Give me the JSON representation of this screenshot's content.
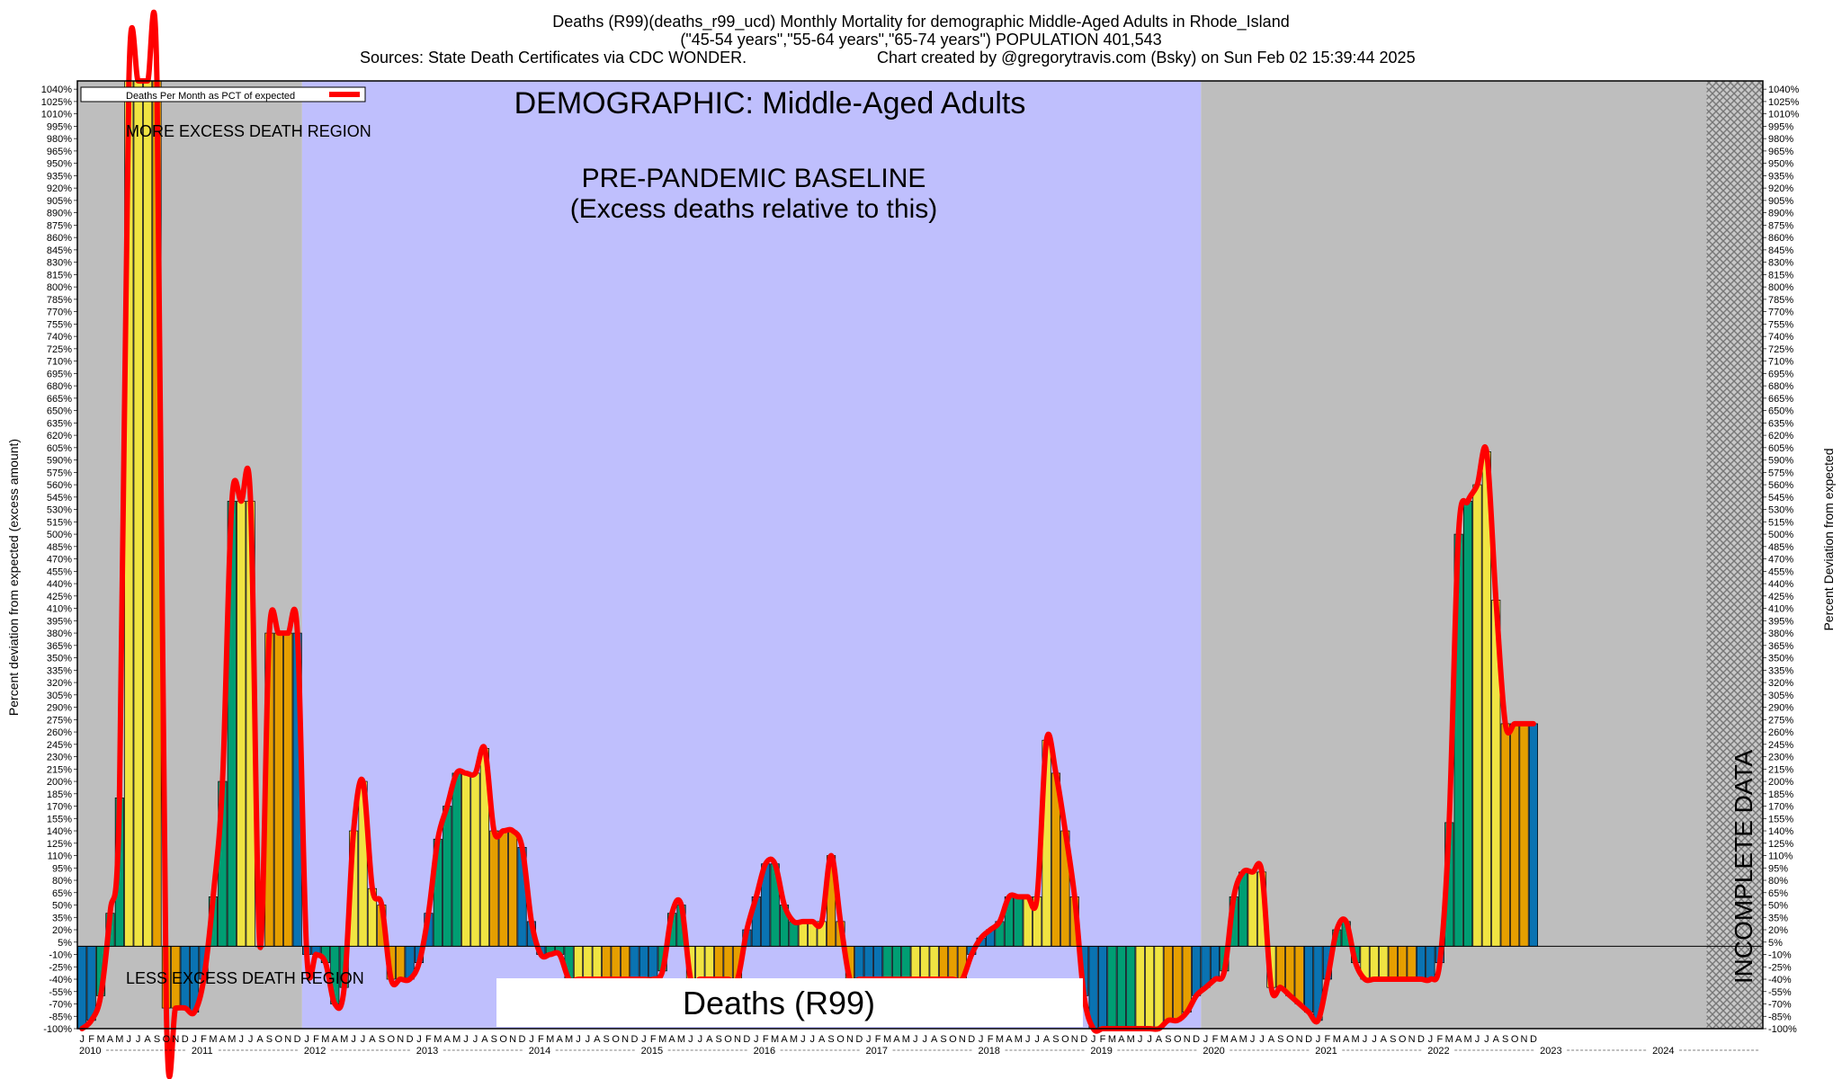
{
  "header": {
    "line1": "Deaths (R99)(deaths_r99_ucd) Monthly Mortality for demographic Middle-Aged Adults in Rhode_Island",
    "line2": "(\"45-54 years\",\"55-64 years\",\"65-74 years\") POPULATION 401,543",
    "line3_left": "Sources: State Death Certificates via CDC WONDER.",
    "line3_right": "Chart created by @gregorytravis.com (Bsky) on Sun Feb 02 15:39:44 2025"
  },
  "annotations": {
    "demographic": "DEMOGRAPHIC: Middle-Aged Adults",
    "baseline_line1": "PRE-PANDEMIC BASELINE",
    "baseline_line2": "(Excess deaths relative to this)",
    "more_excess": "MORE EXCESS DEATH REGION",
    "less_excess": "LESS EXCESS DEATH REGION",
    "incomplete": "INCOMPLETE DATA",
    "cause_box": "Deaths (R99)"
  },
  "legend": {
    "label": "Deaths Per Month as PCT of expected",
    "position": "top-left"
  },
  "colors": {
    "baseline_region": "#bfbffd",
    "non_baseline_region": "#bebebe",
    "incomplete_hatch": "#8c8c8c",
    "line": "#ff0000",
    "bar_winter": "#0a73b2",
    "bar_spring": "#009e73",
    "bar_summer": "#f0e442",
    "bar_autumn": "#e69f00"
  },
  "chart_data": {
    "type": "bar",
    "title": "Deaths (R99)(deaths_r99_ucd) Monthly Mortality for demographic Middle-Aged Adults in Rhode_Island",
    "ylabel_left": "Percent deviation from expected (excess amount)",
    "ylabel_right": "Percent Deviation from expected",
    "ylim": [
      -100,
      1050
    ],
    "y_tick_step": 15,
    "y_tick_suffix": "%",
    "grid": false,
    "month_letters": [
      "J",
      "F",
      "M",
      "A",
      "M",
      "J",
      "J",
      "A",
      "S",
      "O",
      "N",
      "D"
    ],
    "years": [
      "2010",
      "2011",
      "2012",
      "2013",
      "2014",
      "2015",
      "2016",
      "2017",
      "2018",
      "2019",
      "2020",
      "2021",
      "2022",
      "2023",
      "2024"
    ],
    "baseline_period": [
      "2012-01",
      "2019-12"
    ],
    "incomplete_period": [
      "2024-07",
      "2024-12"
    ],
    "series": [
      {
        "values": [
          -100,
          -90,
          -60,
          40,
          180,
          1050,
          1050,
          1050,
          1050,
          -75,
          -75,
          -75,
          -80,
          -40,
          60,
          200,
          540,
          540,
          540,
          0,
          380,
          380,
          380,
          380,
          -10,
          -10,
          -20,
          -70,
          -50,
          140,
          200,
          70,
          50,
          -40,
          -40,
          -40,
          -20,
          40,
          130,
          170,
          210,
          210,
          210,
          240,
          140,
          140,
          140,
          120,
          30,
          -10,
          -10,
          -10,
          -40,
          -40,
          -40,
          -40,
          -40,
          -40,
          -40,
          -40,
          -40,
          -40,
          -30,
          40,
          50,
          -40,
          -40,
          -40,
          -40,
          -40,
          -40,
          20,
          60,
          100,
          100,
          50,
          30,
          30,
          30,
          30,
          110,
          30,
          -40,
          -40,
          -40,
          -40,
          -40,
          -40,
          -40,
          -40,
          -40,
          -40,
          -40,
          -40,
          -40,
          -10,
          10,
          20,
          30,
          60,
          60,
          60,
          60,
          250,
          210,
          140,
          60,
          -60,
          -100,
          -100,
          -100,
          -100,
          -100,
          -100,
          -100,
          -100,
          -90,
          -90,
          -80,
          -60,
          -50,
          -40,
          -30,
          60,
          90,
          90,
          90,
          -50,
          -50,
          -60,
          -70,
          -80,
          -90,
          -40,
          20,
          30,
          -20,
          -40,
          -40,
          -40,
          -40,
          -40,
          -40,
          -40,
          -40,
          -20,
          150,
          500,
          540,
          560,
          600,
          420,
          270,
          270,
          270,
          270
        ]
      }
    ]
  }
}
